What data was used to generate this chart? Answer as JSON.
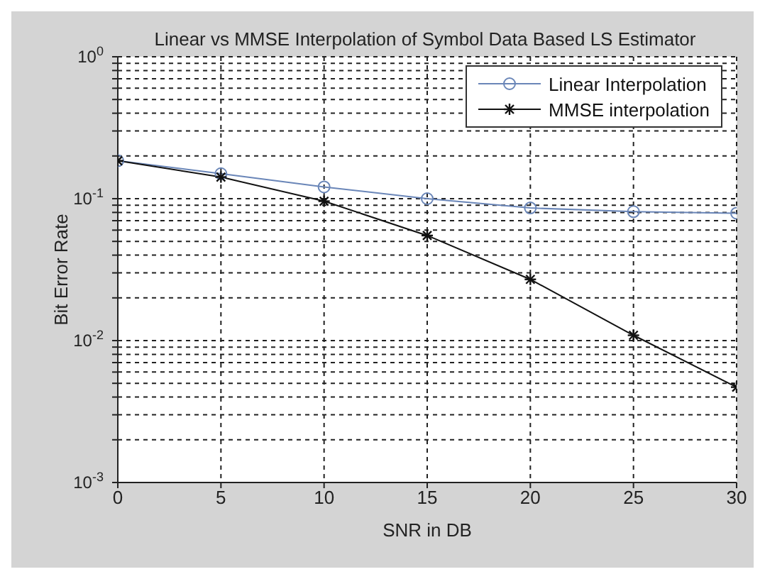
{
  "chart_data": {
    "type": "line",
    "title": "Linear  vs MMSE Interpolation of Symbol Data Based LS Estimator",
    "xlabel": "SNR in DB",
    "ylabel": "Bit Error Rate",
    "x": [
      0,
      5,
      10,
      15,
      20,
      25,
      30
    ],
    "series": [
      {
        "name": "Linear Interpolation",
        "color": "#6a86b8",
        "marker": "circle",
        "values": [
          0.185,
          0.15,
          0.121,
          0.1,
          0.086,
          0.081,
          0.079
        ]
      },
      {
        "name": "MMSE interpolation",
        "color": "#111111",
        "marker": "cross",
        "values": [
          0.185,
          0.142,
          0.096,
          0.055,
          0.027,
          0.0109,
          0.0047
        ]
      }
    ],
    "log": "y",
    "xlim": [
      0,
      30
    ],
    "xticks": [
      0,
      5,
      10,
      15,
      20,
      25,
      30
    ],
    "ylim": [
      0.001,
      1
    ],
    "yticks": [
      {
        "value": 0.001,
        "label": "10$^{-3}$"
      },
      {
        "value": 0.002,
        "label": null
      },
      {
        "value": 0.003,
        "label": null
      },
      {
        "value": 0.004,
        "label": null
      },
      {
        "value": 0.005,
        "label": null
      },
      {
        "value": 0.006,
        "label": null
      },
      {
        "value": 0.007,
        "label": null
      },
      {
        "value": 0.008,
        "label": null
      },
      {
        "value": 0.009,
        "label": null
      },
      {
        "value": 0.01,
        "label": "10$^{-2}$"
      },
      {
        "value": 0.02,
        "label": null
      },
      {
        "value": 0.03,
        "label": null
      },
      {
        "value": 0.04,
        "label": null
      },
      {
        "value": 0.05,
        "label": null
      },
      {
        "value": 0.06,
        "label": null
      },
      {
        "value": 0.07,
        "label": null
      },
      {
        "value": 0.08,
        "label": null
      },
      {
        "value": 0.09,
        "label": null
      },
      {
        "value": 0.1,
        "label": "10$^{-1}$"
      },
      {
        "value": 0.2,
        "label": null
      },
      {
        "value": 0.3,
        "label": null
      },
      {
        "value": 0.4,
        "label": null
      },
      {
        "value": 0.5,
        "label": null
      },
      {
        "value": 0.6,
        "label": null
      },
      {
        "value": 0.7,
        "label": null
      },
      {
        "value": 0.8,
        "label": null
      },
      {
        "value": 0.9,
        "label": null
      },
      {
        "value": 1,
        "label": "10$^{0}$"
      }
    ],
    "grid": true,
    "legend": "top right",
    "line_style": "solid"
  }
}
